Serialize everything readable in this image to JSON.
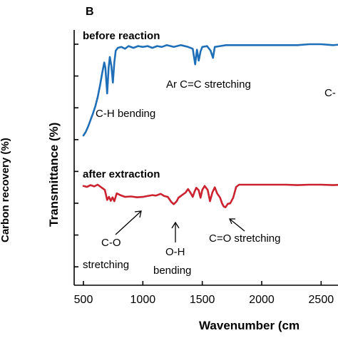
{
  "panel_label": "B",
  "left_cutoff_label": "Carbon recovery (%)",
  "chart_data": {
    "type": "line",
    "title": "",
    "xlabel": "Wavenumber (cm",
    "ylabel": "Transmittance (%)",
    "xlim": [
      500,
      2700
    ],
    "x_ticks": [
      500,
      1000,
      1500,
      2000,
      2500
    ],
    "x_tick_labels": [
      "500",
      "1000",
      "1500",
      "2000",
      "2500"
    ],
    "y_ticks_count": 8,
    "grid": false,
    "series": [
      {
        "name": "before reaction",
        "color": "#1f6fb8",
        "points": [
          [
            500,
            0.0
          ],
          [
            520,
            0.04
          ],
          [
            540,
            0.1
          ],
          [
            560,
            0.17
          ],
          [
            580,
            0.24
          ],
          [
            600,
            0.32
          ],
          [
            620,
            0.42
          ],
          [
            640,
            0.55
          ],
          [
            660,
            0.7
          ],
          [
            675,
            0.8
          ],
          [
            685,
            0.74
          ],
          [
            700,
            0.46
          ],
          [
            712,
            0.74
          ],
          [
            722,
            0.86
          ],
          [
            735,
            0.76
          ],
          [
            748,
            0.58
          ],
          [
            760,
            0.8
          ],
          [
            772,
            0.93
          ],
          [
            790,
            0.96
          ],
          [
            820,
            0.97
          ],
          [
            850,
            0.95
          ],
          [
            880,
            0.98
          ],
          [
            920,
            0.96
          ],
          [
            960,
            0.98
          ],
          [
            1000,
            0.97
          ],
          [
            1040,
            0.98
          ],
          [
            1080,
            0.96
          ],
          [
            1120,
            0.98
          ],
          [
            1160,
            0.97
          ],
          [
            1200,
            0.99
          ],
          [
            1260,
            0.97
          ],
          [
            1320,
            0.99
          ],
          [
            1380,
            0.97
          ],
          [
            1420,
            0.95
          ],
          [
            1440,
            0.78
          ],
          [
            1455,
            0.94
          ],
          [
            1470,
            0.82
          ],
          [
            1485,
            0.92
          ],
          [
            1500,
            0.97
          ],
          [
            1540,
            0.98
          ],
          [
            1570,
            0.93
          ],
          [
            1590,
            0.85
          ],
          [
            1605,
            0.97
          ],
          [
            1650,
            0.98
          ],
          [
            1700,
            0.99
          ],
          [
            1800,
            0.99
          ],
          [
            1900,
            0.99
          ],
          [
            2000,
            0.99
          ],
          [
            2100,
            0.99
          ],
          [
            2200,
            0.99
          ],
          [
            2300,
            0.99
          ],
          [
            2400,
            1.0
          ],
          [
            2500,
            1.0
          ],
          [
            2600,
            0.99
          ],
          [
            2700,
            1.0
          ]
        ]
      },
      {
        "name": "after extraction",
        "color": "#cc2230",
        "points": [
          [
            500,
            0.97
          ],
          [
            530,
            0.95
          ],
          [
            560,
            0.99
          ],
          [
            590,
            0.96
          ],
          [
            620,
            1.0
          ],
          [
            650,
            0.94
          ],
          [
            680,
            0.88
          ],
          [
            700,
            0.65
          ],
          [
            715,
            0.72
          ],
          [
            730,
            0.63
          ],
          [
            745,
            0.71
          ],
          [
            760,
            0.62
          ],
          [
            780,
            0.8
          ],
          [
            810,
            0.76
          ],
          [
            850,
            0.72
          ],
          [
            900,
            0.73
          ],
          [
            950,
            0.71
          ],
          [
            1000,
            0.72
          ],
          [
            1040,
            0.74
          ],
          [
            1080,
            0.76
          ],
          [
            1110,
            0.75
          ],
          [
            1150,
            0.79
          ],
          [
            1180,
            0.74
          ],
          [
            1210,
            0.72
          ],
          [
            1240,
            0.6
          ],
          [
            1260,
            0.55
          ],
          [
            1285,
            0.62
          ],
          [
            1300,
            0.7
          ],
          [
            1330,
            0.76
          ],
          [
            1360,
            0.82
          ],
          [
            1380,
            0.9
          ],
          [
            1400,
            0.82
          ],
          [
            1420,
            0.72
          ],
          [
            1435,
            0.84
          ],
          [
            1450,
            0.93
          ],
          [
            1470,
            0.87
          ],
          [
            1485,
            0.7
          ],
          [
            1500,
            0.88
          ],
          [
            1520,
            0.97
          ],
          [
            1545,
            0.88
          ],
          [
            1565,
            0.62
          ],
          [
            1585,
            0.82
          ],
          [
            1605,
            0.94
          ],
          [
            1625,
            0.8
          ],
          [
            1650,
            0.7
          ],
          [
            1665,
            0.58
          ],
          [
            1680,
            0.5
          ],
          [
            1695,
            0.48
          ],
          [
            1715,
            0.56
          ],
          [
            1735,
            0.57
          ],
          [
            1760,
            0.7
          ],
          [
            1785,
            0.95
          ],
          [
            1810,
            1.0
          ],
          [
            1900,
            1.0
          ],
          [
            2000,
            1.0
          ],
          [
            2100,
            1.0
          ],
          [
            2200,
            1.0
          ],
          [
            2300,
            0.99
          ],
          [
            2400,
            1.0
          ],
          [
            2500,
            1.0
          ],
          [
            2600,
            0.99
          ],
          [
            2700,
            1.0
          ]
        ]
      }
    ],
    "annotations": [
      {
        "series_label": "before reaction"
      },
      {
        "text": "C-H bending"
      },
      {
        "text": "Ar C=C stretching"
      },
      {
        "text": "C-"
      },
      {
        "series_label": "after extraction"
      },
      {
        "text": "C-O"
      },
      {
        "text": "stretching"
      },
      {
        "text": "O-H"
      },
      {
        "text": "bending"
      },
      {
        "text": "C=O stretching"
      }
    ]
  }
}
